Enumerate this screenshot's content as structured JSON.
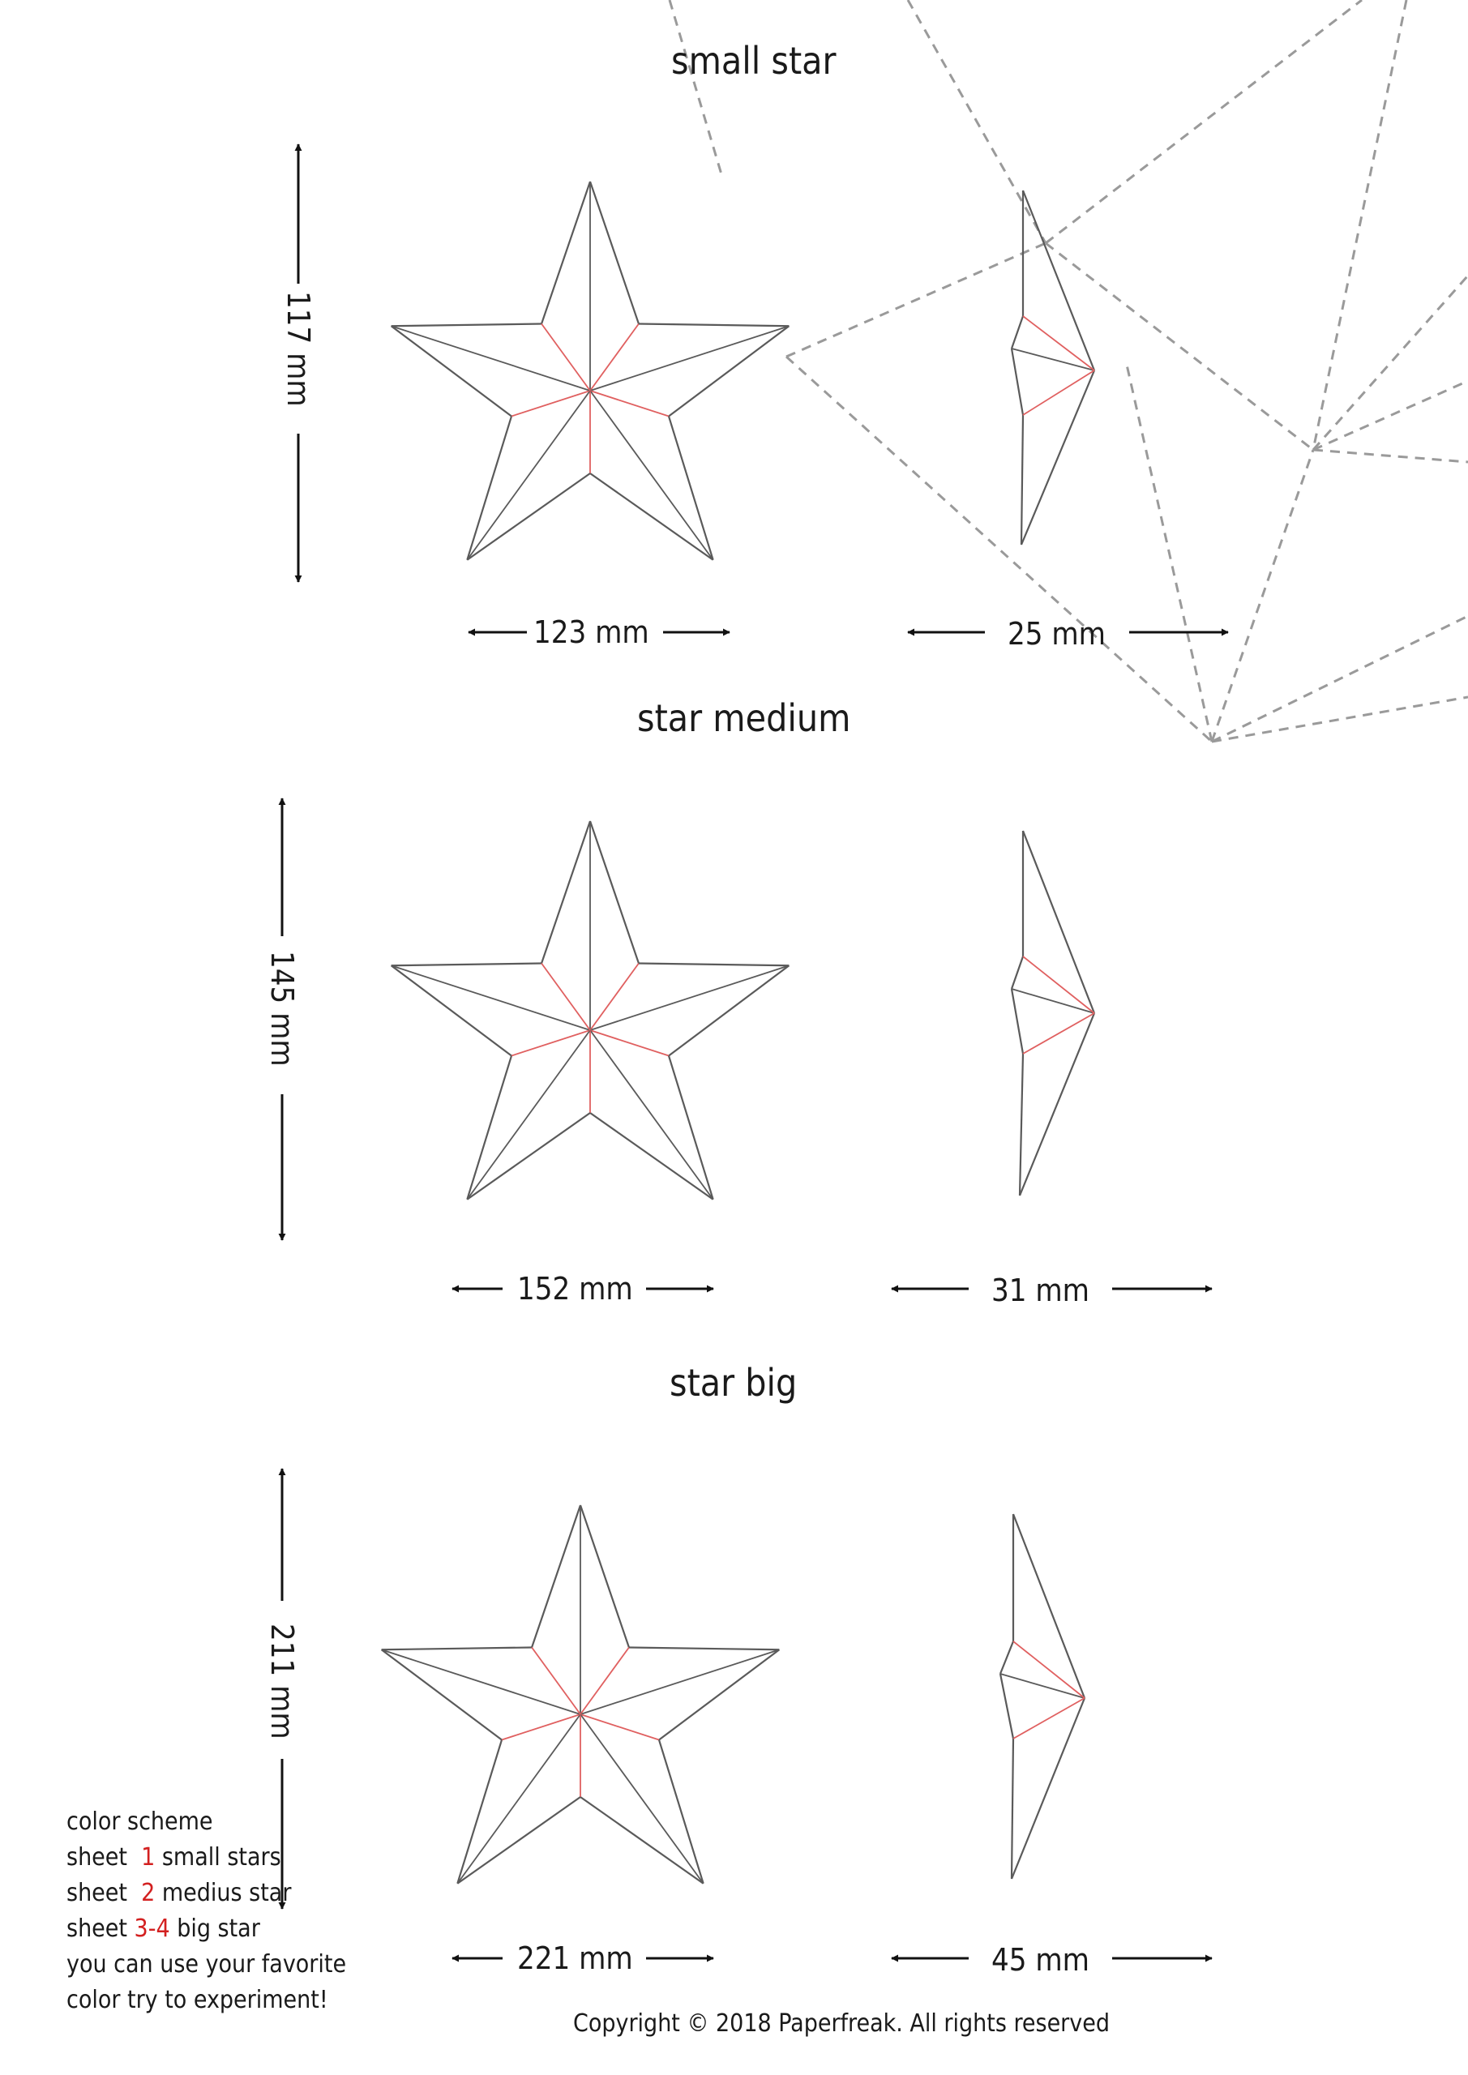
{
  "sections": [
    {
      "title": "small star",
      "height": "117 mm",
      "width": "123 mm",
      "depth": "25 mm"
    },
    {
      "title": "star medium",
      "height": "145 mm",
      "width": "152 mm",
      "depth": "31 mm"
    },
    {
      "title": "star big",
      "height": "211 mm",
      "width": "221 mm",
      "depth": "45 mm"
    }
  ],
  "legend": {
    "heading": "color  scheme",
    "rows": [
      {
        "prefix": "sheet  ",
        "num": "1",
        "text": " small stars"
      },
      {
        "prefix": "sheet  ",
        "num": "2",
        "text": " medius star"
      },
      {
        "prefix": "sheet ",
        "num": "3-4",
        "text": " big star"
      }
    ],
    "line1": "you can use your favorite",
    "line2": "color try to experiment!"
  },
  "copyright": "Copyright © 2018 Paperfreak. All rights reserved",
  "colors": {
    "outline": "#5a5a5a",
    "fold": "#e06060",
    "dashes": "#9a9a9a",
    "text": "#1a1a1a",
    "accent": "#d32020"
  }
}
